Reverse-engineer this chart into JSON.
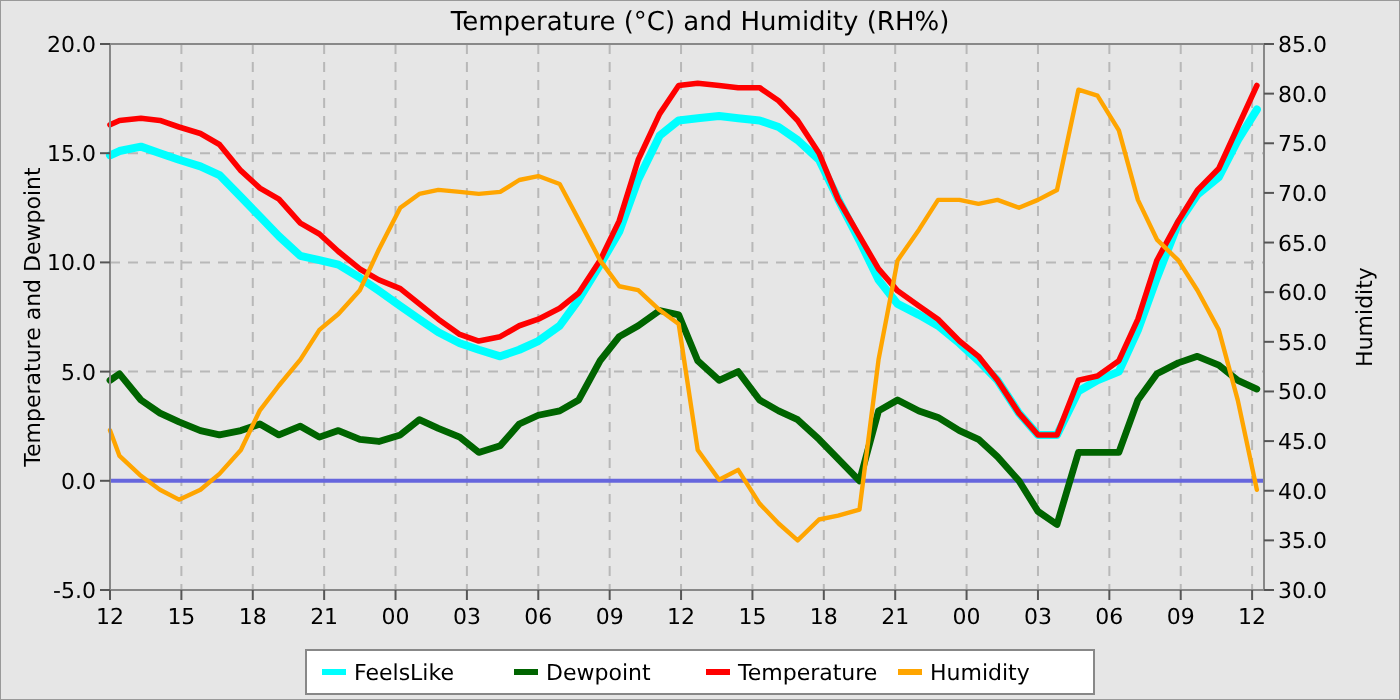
{
  "chart_data": {
    "type": "line",
    "title": "Temperature (°C) and Humidity (RH%)",
    "ylabel": "Temperature and Dewpoint",
    "y2label": "Humidity",
    "x": [
      12,
      12.4,
      13.3,
      14.1,
      14.9,
      15.8,
      16.6,
      17.5,
      18.3,
      19.1,
      20.0,
      20.8,
      21.6,
      22.5,
      23.3,
      24.2,
      25.0,
      25.8,
      26.7,
      27.5,
      28.4,
      29.2,
      30.0,
      30.9,
      31.7,
      32.6,
      33.4,
      34.2,
      35.1,
      35.9,
      36.7,
      37.6,
      38.4,
      39.3,
      40.1,
      40.9,
      41.8,
      42.6,
      43.5,
      44.3,
      45.1,
      46.0,
      46.8,
      47.7,
      48.5,
      49.3,
      50.2,
      51.0,
      51.8,
      52.7,
      53.5,
      54.4,
      55.2,
      56.0,
      56.9,
      57.7,
      58.6,
      59.4,
      60.2
    ],
    "series": [
      {
        "name": "FeelsLike",
        "color": "#00ffff",
        "values": [
          14.9,
          15.1,
          15.3,
          15.0,
          14.7,
          14.4,
          14.0,
          13.0,
          12.1,
          11.2,
          10.3,
          10.1,
          9.9,
          9.3,
          8.7,
          8.0,
          7.4,
          6.8,
          6.3,
          6.0,
          5.7,
          6.0,
          6.4,
          7.1,
          8.3,
          9.9,
          11.4,
          13.8,
          15.8,
          16.5,
          16.6,
          16.7,
          16.6,
          16.5,
          16.2,
          15.6,
          14.7,
          12.9,
          11.0,
          9.2,
          8.1,
          7.6,
          7.1,
          6.3,
          5.5,
          4.6,
          3.1,
          2.1,
          2.1,
          4.1,
          4.6,
          5.0,
          6.9,
          9.3,
          11.8,
          13.1,
          13.9,
          15.6,
          17.0
        ]
      },
      {
        "name": "Dewpoint",
        "color": "#006400",
        "values": [
          4.6,
          4.9,
          3.7,
          3.1,
          2.7,
          2.3,
          2.1,
          2.3,
          2.6,
          2.1,
          2.5,
          2.0,
          2.3,
          1.9,
          1.8,
          2.1,
          2.8,
          2.4,
          2.0,
          1.3,
          1.6,
          2.6,
          3.0,
          3.2,
          3.7,
          5.5,
          6.6,
          7.1,
          7.8,
          7.6,
          5.5,
          4.6,
          5.0,
          3.7,
          3.2,
          2.8,
          1.9,
          1.0,
          0.0,
          3.2,
          3.7,
          3.2,
          2.9,
          2.3,
          1.9,
          1.1,
          0.0,
          -1.4,
          -2.0,
          1.3,
          1.3,
          1.3,
          3.7,
          4.9,
          5.4,
          5.7,
          5.3,
          4.6,
          4.2
        ]
      },
      {
        "name": "Temperature",
        "color": "#ff0000",
        "values": [
          16.3,
          16.5,
          16.6,
          16.5,
          16.2,
          15.9,
          15.4,
          14.2,
          13.4,
          12.9,
          11.8,
          11.3,
          10.5,
          9.7,
          9.2,
          8.8,
          8.1,
          7.4,
          6.7,
          6.4,
          6.6,
          7.1,
          7.4,
          7.9,
          8.6,
          10.1,
          11.9,
          14.7,
          16.8,
          18.1,
          18.2,
          18.1,
          18.0,
          18.0,
          17.4,
          16.5,
          15.0,
          12.9,
          11.2,
          9.7,
          8.7,
          8.0,
          7.4,
          6.4,
          5.7,
          4.6,
          3.1,
          2.1,
          2.1,
          4.6,
          4.8,
          5.5,
          7.4,
          10.1,
          11.9,
          13.3,
          14.3,
          16.2,
          18.1
        ]
      },
      {
        "name": "Humidity",
        "color": "#ffa500",
        "axis": "y2",
        "values": [
          46.1,
          43.5,
          41.5,
          40.1,
          39.1,
          40.1,
          41.7,
          44.1,
          48.1,
          50.6,
          53.2,
          56.2,
          57.8,
          60.2,
          64.3,
          68.5,
          69.9,
          70.3,
          70.1,
          69.9,
          70.1,
          71.3,
          71.7,
          70.9,
          67.3,
          63.2,
          60.6,
          60.2,
          58.2,
          56.8,
          44.1,
          41.1,
          42.1,
          38.7,
          36.7,
          35.0,
          37.1,
          37.5,
          38.1,
          53.2,
          63.2,
          66.3,
          69.3,
          69.3,
          68.9,
          69.3,
          68.5,
          69.3,
          70.3,
          80.4,
          79.8,
          76.3,
          69.3,
          65.3,
          63.2,
          60.2,
          56.2,
          49.1,
          40.1
        ]
      }
    ],
    "xlim": [
      12,
      60.5
    ],
    "xticks": [
      12,
      15,
      18,
      21,
      {
        "value": 24,
        "label": "00"
      },
      {
        "value": 27,
        "label": "03"
      },
      {
        "value": 30,
        "label": "06"
      },
      {
        "value": 33,
        "label": "09"
      },
      {
        "value": 36,
        "label": "12"
      },
      {
        "value": 39,
        "label": "15"
      },
      {
        "value": 42,
        "label": "18"
      },
      {
        "value": 45,
        "label": "21"
      },
      {
        "value": 48,
        "label": "00"
      },
      {
        "value": 51,
        "label": "03"
      },
      {
        "value": 54,
        "label": "06"
      },
      {
        "value": 57,
        "label": "09"
      },
      {
        "value": 60,
        "label": "12"
      }
    ],
    "ylim": [
      -5,
      20
    ],
    "yticks": [
      {
        "value": -5,
        "label": "-5.0"
      },
      {
        "value": 0,
        "label": "0.0"
      },
      {
        "value": 5,
        "label": "5.0"
      },
      {
        "value": 10,
        "label": "10.0"
      },
      {
        "value": 15,
        "label": "15.0"
      },
      {
        "value": 20,
        "label": "20.0"
      }
    ],
    "y2lim": [
      30,
      85
    ],
    "y2ticks": [
      {
        "value": 30,
        "label": "30.0"
      },
      {
        "value": 35,
        "label": "35.0"
      },
      {
        "value": 40,
        "label": "40.0"
      },
      {
        "value": 45,
        "label": "45.0"
      },
      {
        "value": 50,
        "label": "50.0"
      },
      {
        "value": 55,
        "label": "55.0"
      },
      {
        "value": 60,
        "label": "60.0"
      },
      {
        "value": 65,
        "label": "65.0"
      },
      {
        "value": 70,
        "label": "70.0"
      },
      {
        "value": 75,
        "label": "75.0"
      },
      {
        "value": 80,
        "label": "80.0"
      },
      {
        "value": 85,
        "label": "85.0"
      }
    ],
    "grid": true,
    "legend": "bottom",
    "marker": "none",
    "line_style": "solid",
    "ref_lines": [
      {
        "axis": "y",
        "value": 0,
        "color": "#6666dd"
      }
    ]
  }
}
